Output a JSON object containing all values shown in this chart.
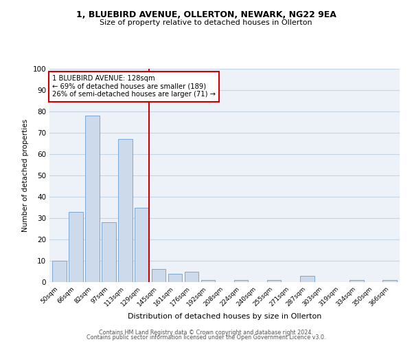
{
  "title1": "1, BLUEBIRD AVENUE, OLLERTON, NEWARK, NG22 9EA",
  "title2": "Size of property relative to detached houses in Ollerton",
  "xlabel": "Distribution of detached houses by size in Ollerton",
  "ylabel": "Number of detached properties",
  "bar_labels": [
    "50sqm",
    "66sqm",
    "82sqm",
    "97sqm",
    "113sqm",
    "129sqm",
    "145sqm",
    "161sqm",
    "176sqm",
    "192sqm",
    "208sqm",
    "224sqm",
    "240sqm",
    "255sqm",
    "271sqm",
    "287sqm",
    "303sqm",
    "319sqm",
    "334sqm",
    "350sqm",
    "366sqm"
  ],
  "bar_values": [
    10,
    33,
    78,
    28,
    67,
    35,
    6,
    4,
    5,
    1,
    0,
    1,
    0,
    1,
    0,
    3,
    0,
    0,
    1,
    0,
    1
  ],
  "bar_color": "#cddaec",
  "bar_edge_color": "#7aa8d4",
  "highlight_index": 5,
  "highlight_line_color": "#cc0000",
  "annotation_line1": "1 BLUEBIRD AVENUE: 128sqm",
  "annotation_line2": "← 69% of detached houses are smaller (189)",
  "annotation_line3": "26% of semi-detached houses are larger (71) →",
  "annotation_box_color": "#cc0000",
  "ylim": [
    0,
    100
  ],
  "yticks": [
    0,
    10,
    20,
    30,
    40,
    50,
    60,
    70,
    80,
    90,
    100
  ],
  "grid_color": "#c5d5e5",
  "bg_color": "#edf2f8",
  "footer1": "Contains HM Land Registry data © Crown copyright and database right 2024.",
  "footer2": "Contains public sector information licensed under the Open Government Licence v3.0."
}
